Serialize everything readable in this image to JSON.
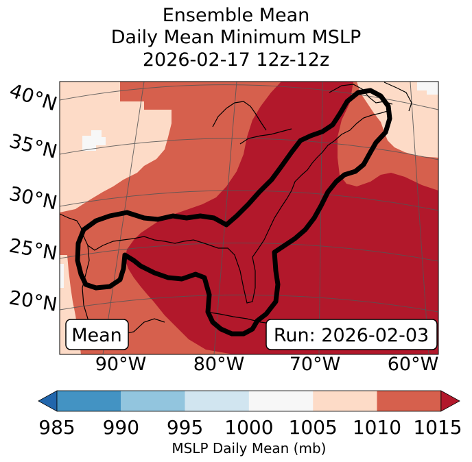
{
  "title": {
    "line1": "Ensemble Mean",
    "line2": "Daily Mean Minimum MSLP",
    "line3": "2026-02-17 12z-12z"
  },
  "map": {
    "lat_labels": [
      "40°N",
      "35°N",
      "30°N",
      "25°N",
      "20°N"
    ],
    "lon_labels": [
      "90°W",
      "80°W",
      "70°W",
      "60°W"
    ],
    "mean_box": "Mean",
    "run_box": "Run: 2026-02-03",
    "field_colors": {
      "1000-1005": "#f7f7f7",
      "1005-1010": "#fddbc7",
      "1010-1015": "#d6604d",
      "1015+": "#b2182b"
    },
    "contour_color": "#000000"
  },
  "colorbar": {
    "ticks": [
      "985",
      "990",
      "995",
      "1000",
      "1005",
      "1010",
      "1015"
    ],
    "colors": [
      "#4393c3",
      "#92c5de",
      "#d1e5f0",
      "#f7f7f7",
      "#fddbc7",
      "#d6604d"
    ],
    "under_color": "#2166ac",
    "over_color": "#b2182b",
    "label": "MSLP Daily Mean (mb)"
  }
}
